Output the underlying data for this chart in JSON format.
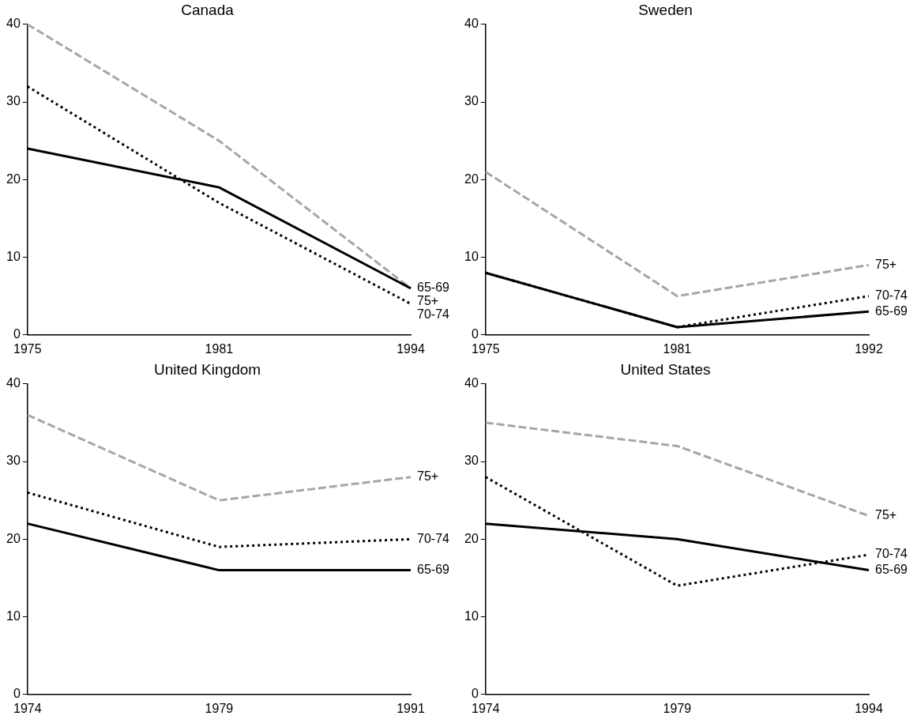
{
  "chart_data": [
    {
      "type": "line",
      "title": "Canada",
      "categories": [
        "1975",
        "1981",
        "1994"
      ],
      "ylim": [
        0,
        40
      ],
      "yticks": [
        0,
        10,
        20,
        30,
        40
      ],
      "grid": false,
      "legend": false,
      "marker": "none",
      "series": [
        {
          "name": "65-69",
          "color": "#000000",
          "line_style": "solid",
          "values": [
            24,
            19,
            6
          ]
        },
        {
          "name": "70-74",
          "color": "#000000",
          "line_style": "dotted",
          "values": [
            32,
            17,
            4
          ]
        },
        {
          "name": "75+",
          "color": "#a6a6a6",
          "line_style": "dashed",
          "values": [
            40,
            25,
            6
          ]
        }
      ]
    },
    {
      "type": "line",
      "title": "Sweden",
      "categories": [
        "1975",
        "1981",
        "1992"
      ],
      "ylim": [
        0,
        40
      ],
      "yticks": [
        0,
        10,
        20,
        30,
        40
      ],
      "grid": false,
      "legend": false,
      "marker": "none",
      "series": [
        {
          "name": "65-69",
          "color": "#000000",
          "line_style": "solid",
          "values": [
            8,
            1,
            3
          ]
        },
        {
          "name": "70-74",
          "color": "#000000",
          "line_style": "dotted",
          "values": [
            8,
            1,
            5
          ]
        },
        {
          "name": "75+",
          "color": "#a6a6a6",
          "line_style": "dashed",
          "values": [
            21,
            5,
            9
          ]
        }
      ]
    },
    {
      "type": "line",
      "title": "United Kingdom",
      "categories": [
        "1974",
        "1979",
        "1991"
      ],
      "ylim": [
        0,
        40
      ],
      "yticks": [
        0,
        10,
        20,
        30,
        40
      ],
      "grid": false,
      "legend": false,
      "marker": "none",
      "series": [
        {
          "name": "65-69",
          "color": "#000000",
          "line_style": "solid",
          "values": [
            22,
            16,
            16
          ]
        },
        {
          "name": "70-74",
          "color": "#000000",
          "line_style": "dotted",
          "values": [
            26,
            19,
            20
          ]
        },
        {
          "name": "75+",
          "color": "#a6a6a6",
          "line_style": "dashed",
          "values": [
            36,
            25,
            28
          ]
        }
      ]
    },
    {
      "type": "line",
      "title": "United States",
      "categories": [
        "1974",
        "1979",
        "1994"
      ],
      "ylim": [
        0,
        40
      ],
      "yticks": [
        0,
        10,
        20,
        30,
        40
      ],
      "grid": false,
      "legend": false,
      "marker": "none",
      "series": [
        {
          "name": "65-69",
          "color": "#000000",
          "line_style": "solid",
          "values": [
            22,
            20,
            16
          ]
        },
        {
          "name": "70-74",
          "color": "#000000",
          "line_style": "dotted",
          "values": [
            28,
            14,
            18
          ]
        },
        {
          "name": "75+",
          "color": "#a6a6a6",
          "line_style": "dashed",
          "values": [
            35,
            32,
            23
          ]
        }
      ]
    }
  ]
}
